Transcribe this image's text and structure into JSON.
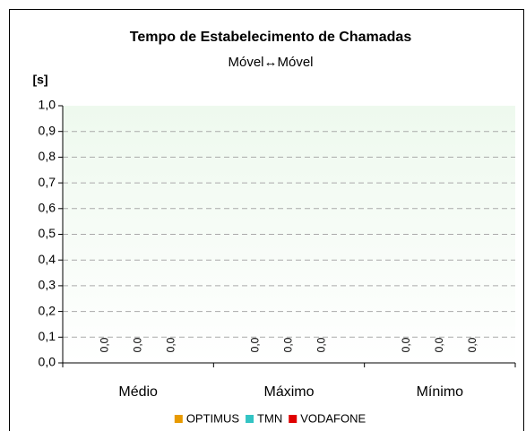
{
  "chart_data": {
    "type": "bar",
    "title": "Tempo de Estabelecimento de Chamadas",
    "subtitle": "Móvel↔Móvel",
    "y_axis_label": "[s]",
    "categories": [
      "Médio",
      "Máximo",
      "Mínimo"
    ],
    "series": [
      {
        "name": "OPTIMUS",
        "color": "#e89a00",
        "values": [
          0,
          0,
          0
        ],
        "value_labels": [
          "0,0",
          "0,0",
          "0,0"
        ]
      },
      {
        "name": "TMN",
        "color": "#33c4c4",
        "values": [
          0,
          0,
          0
        ],
        "value_labels": [
          "0,0",
          "0,0",
          "0,0"
        ]
      },
      {
        "name": "VODAFONE",
        "color": "#e00000",
        "values": [
          0,
          0,
          0
        ],
        "value_labels": [
          "0,0",
          "0,0",
          "0,0"
        ]
      }
    ],
    "ylim": [
      0,
      1
    ],
    "yticks": [
      {
        "value": 0,
        "label": "0,0"
      },
      {
        "value": 0.1,
        "label": "0,1"
      },
      {
        "value": 0.2,
        "label": "0,2"
      },
      {
        "value": 0.3,
        "label": "0,3"
      },
      {
        "value": 0.4,
        "label": "0,4"
      },
      {
        "value": 0.5,
        "label": "0,5"
      },
      {
        "value": 0.6,
        "label": "0,6"
      },
      {
        "value": 0.7,
        "label": "0,7"
      },
      {
        "value": 0.8,
        "label": "0,8"
      },
      {
        "value": 0.9,
        "label": "0,9"
      },
      {
        "value": 1,
        "label": "1,0"
      }
    ],
    "grid": true,
    "legend": "bottom"
  }
}
